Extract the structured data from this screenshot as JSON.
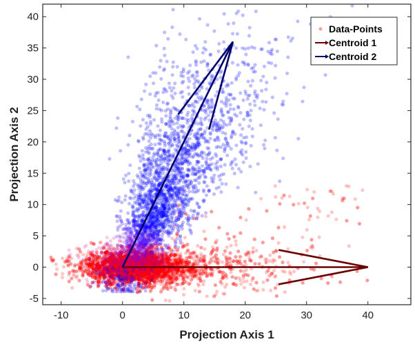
{
  "chart_data": {
    "type": "scatter",
    "title": "",
    "xlabel": "Projection Axis 1",
    "ylabel": "Projection Axis 2",
    "xlim": [
      -13,
      47
    ],
    "ylim": [
      -6,
      42
    ],
    "x_ticks": [
      -10,
      0,
      10,
      20,
      30,
      40
    ],
    "y_ticks": [
      -5,
      0,
      5,
      10,
      15,
      20,
      25,
      30,
      35,
      40
    ],
    "grid": false,
    "legend_position": "top-right",
    "legend": [
      "Data-Points",
      "Centroid 1",
      "Centroid 2"
    ],
    "colors": {
      "cluster1": "#ff0000",
      "cluster2": "#0000ff",
      "centroid1_arrow": "#6b0000",
      "centroid2_arrow": "#00006b",
      "data_points_legend": "#f4a0a0"
    },
    "series": [
      {
        "name": "Data-Points",
        "kind": "scatter",
        "description_clusters": [
          {
            "center": [
              2,
              0
            ],
            "spread": [
              4.5,
              1.3
            ],
            "direction": [
              1,
              0
            ],
            "points": 3500,
            "color": "#ff0000"
          },
          {
            "center": [
              8,
              17
            ],
            "spread": [
              3.5,
              8
            ],
            "direction": [
              0.45,
              0.9
            ],
            "points": 2500,
            "color": "#0000ff"
          }
        ]
      },
      {
        "name": "Centroid 1",
        "kind": "arrow",
        "from": [
          0,
          0
        ],
        "to": [
          40,
          0
        ],
        "color": "#6b0000"
      },
      {
        "name": "Centroid 2",
        "kind": "arrow",
        "from": [
          0,
          0
        ],
        "to": [
          18,
          36
        ],
        "color": "#00006b"
      }
    ]
  }
}
